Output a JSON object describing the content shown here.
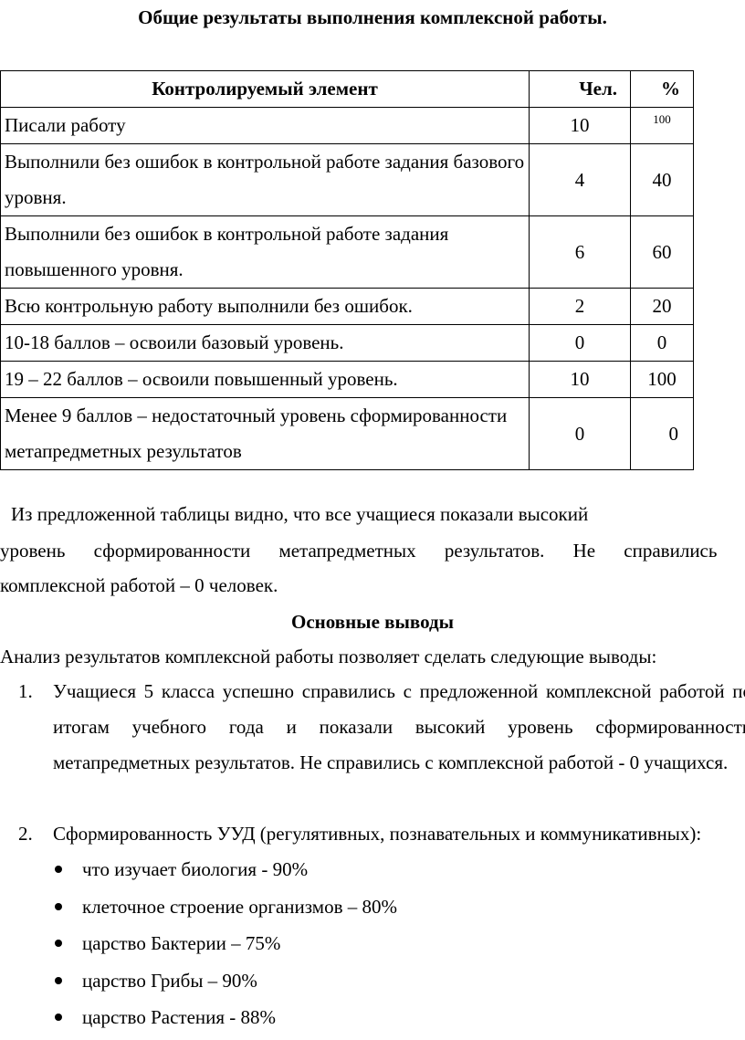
{
  "title": "Общие результаты выполнения комплексной работы.",
  "table": {
    "headers": [
      "Контролируемый элемент",
      "Чел.",
      "%"
    ],
    "rows": [
      {
        "element": "Писали работу",
        "count": "10",
        "percent": "100"
      },
      {
        "element": "Выполнили без ошибок в контрольной работе задания базового уровня.",
        "count": "4",
        "percent": "40"
      },
      {
        "element": "Выполнили без ошибок в контрольной работе задания повышенного уровня.",
        "count": "6",
        "percent": "60"
      },
      {
        "element": "Всю контрольную работу выполнили без ошибок.",
        "count": "2",
        "percent": "20"
      },
      {
        "element": "10-18 баллов – освоили базовый уровень.",
        "count": "0",
        "percent": "0"
      },
      {
        "element": "19 – 22 баллов – освоили повышенный уровень.",
        "count": "10",
        "percent": "100"
      },
      {
        "element": "Менее 9 баллов – недостаточный уровень сформированности метапредметных результатов",
        "count": "0",
        "percent": "0"
      }
    ]
  },
  "paragraph": {
    "line1": "Из предложенной таблицы видно, что все учащиеся показали высокий",
    "line2": "уровень сформированности метапредметных результатов. Не справились с",
    "line3": "комплексной работой – 0 человек."
  },
  "conclusions": {
    "heading": "Основные выводы",
    "intro": "Анализ результатов комплексной работы позволяет сделать следующие выводы:",
    "items": [
      {
        "number": "1.",
        "text": "Учащиеся 5 класса успешно справились с предложенной комплексной работой по итогам учебного года и показали высокий уровень сформированности метапредметных результатов. Не справились с комплексной работой - 0 учащихся."
      },
      {
        "number": "2.",
        "text": "Сформированность УУД (регулятивных, познавательных и коммуникативных):"
      }
    ],
    "bullets": [
      "что изучает биология - 90%",
      "клеточное строение организмов – 80%",
      "царство Бактерии – 75%",
      "царство Грибы – 90%",
      "царство Растения - 88%"
    ]
  }
}
